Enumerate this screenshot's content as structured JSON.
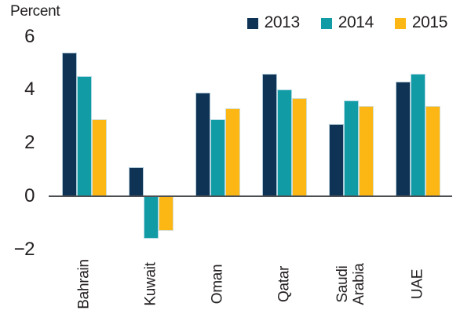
{
  "chart_data": {
    "type": "bar",
    "title": "",
    "ylabel": "Percent",
    "categories": [
      "Bahrain",
      "Kuwait",
      "Oman",
      "Qatar",
      "Saudi Arabia",
      "UAE"
    ],
    "series": [
      {
        "name": "2013",
        "color": "#0e3355",
        "values": [
          5.4,
          1.1,
          3.9,
          4.6,
          2.7,
          4.3
        ]
      },
      {
        "name": "2014",
        "color": "#109ba5",
        "values": [
          4.5,
          -1.6,
          2.9,
          4.0,
          3.6,
          4.6
        ]
      },
      {
        "name": "2015",
        "color": "#fdb714",
        "values": [
          2.9,
          -1.3,
          3.3,
          3.7,
          3.4,
          3.4
        ]
      }
    ],
    "yticks": [
      6,
      4,
      2,
      0,
      -2
    ],
    "ylim": [
      -2.5,
      6.5
    ],
    "grid": false,
    "legend_position": "top-right",
    "xlabel": ""
  },
  "colors": {
    "axis": "#4d4f52",
    "text": "#231f20",
    "bar_edge": "#cde4ee",
    "background": "#ffffff"
  }
}
